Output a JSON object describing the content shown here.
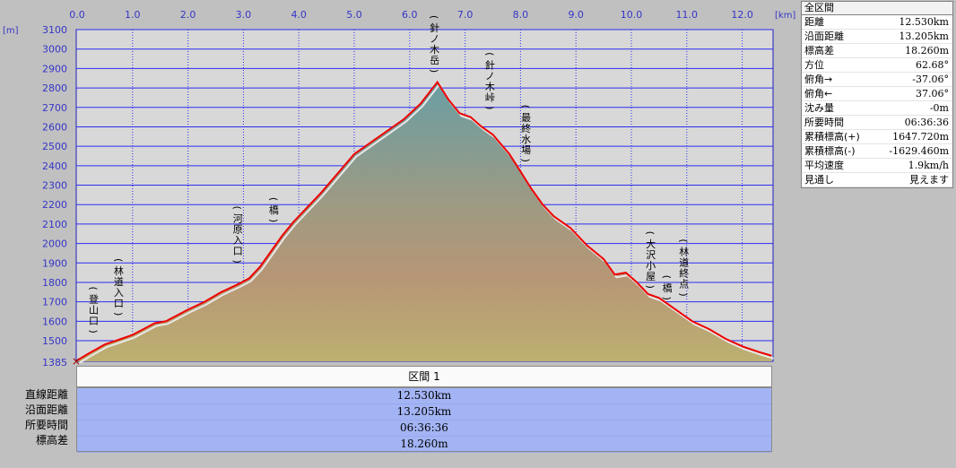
{
  "chart_data": {
    "type": "area",
    "x_unit": "[km]",
    "y_unit": "[m]",
    "xlim": [
      0,
      12.53
    ],
    "ylim": [
      1385,
      3100
    ],
    "x_ticks": [
      "0.0",
      "1.0",
      "2.0",
      "3.0",
      "4.0",
      "5.0",
      "6.0",
      "7.0",
      "8.0",
      "9.0",
      "10.0",
      "11.0",
      "12.0"
    ],
    "y_ticks": [
      "3100",
      "3000",
      "2900",
      "2800",
      "2700",
      "2600",
      "2500",
      "2400",
      "2300",
      "2200",
      "2100",
      "2000",
      "1900",
      "1800",
      "1700",
      "1600",
      "1500",
      "1385"
    ],
    "grid": true,
    "series": [
      {
        "color": "#ee0000",
        "x": [
          0.0,
          0.2,
          0.5,
          0.8,
          1.0,
          1.2,
          1.4,
          1.6,
          1.8,
          2.0,
          2.3,
          2.6,
          2.9,
          3.1,
          3.3,
          3.5,
          3.7,
          3.9,
          4.1,
          4.4,
          4.7,
          5.0,
          5.3,
          5.6,
          5.9,
          6.2,
          6.5,
          6.7,
          6.9,
          7.1,
          7.3,
          7.5,
          7.8,
          8.0,
          8.2,
          8.4,
          8.6,
          8.9,
          9.2,
          9.5,
          9.7,
          9.9,
          10.1,
          10.3,
          10.5,
          10.7,
          10.9,
          11.1,
          11.4,
          11.7,
          12.0,
          12.3,
          12.53
        ],
        "y": [
          1395,
          1430,
          1480,
          1510,
          1530,
          1560,
          1590,
          1600,
          1630,
          1660,
          1700,
          1750,
          1790,
          1820,
          1880,
          1960,
          2040,
          2110,
          2170,
          2260,
          2360,
          2460,
          2520,
          2580,
          2640,
          2720,
          2830,
          2740,
          2670,
          2650,
          2600,
          2560,
          2460,
          2370,
          2280,
          2200,
          2140,
          2080,
          1990,
          1920,
          1840,
          1850,
          1800,
          1740,
          1720,
          1680,
          1640,
          1600,
          1560,
          1510,
          1470,
          1440,
          1420
        ]
      }
    ],
    "annotations": [
      {
        "text": "(登山口)",
        "x": 0.3,
        "y": 1520
      },
      {
        "text": "(林道入口)",
        "x": 0.75,
        "y": 1610
      },
      {
        "text": "(河原入口)",
        "x": 2.9,
        "y": 1880
      },
      {
        "text": "(橋)",
        "x": 3.55,
        "y": 2090
      },
      {
        "text": "(針ノ木岳)",
        "x": 6.45,
        "y": 2860
      },
      {
        "text": "(針ノ木峠)",
        "x": 7.45,
        "y": 2670
      },
      {
        "text": "(最終水場)",
        "x": 8.1,
        "y": 2400
      },
      {
        "text": "(大沢小屋)",
        "x": 10.35,
        "y": 1750
      },
      {
        "text": "(橋)",
        "x": 10.65,
        "y": 1690
      },
      {
        "text": "(林道終点)",
        "x": 10.95,
        "y": 1710
      }
    ]
  },
  "stats": {
    "title": "全区間",
    "rows": [
      {
        "label": "距離",
        "value": "12.530km"
      },
      {
        "label": "沿面距離",
        "value": "13.205km"
      },
      {
        "label": "標高差",
        "value": "18.260m"
      },
      {
        "label": "方位",
        "value": "62.68°"
      },
      {
        "label": "俯角→",
        "value": "-37.06°"
      },
      {
        "label": "俯角←",
        "value": "37.06°"
      },
      {
        "label": "沈み量",
        "value": "-0m"
      },
      {
        "label": "所要時間",
        "value": "06:36:36"
      },
      {
        "label": "累積標高(+)",
        "value": "1647.720m"
      },
      {
        "label": "累積標高(-)",
        "value": "-1629.460m"
      },
      {
        "label": "平均速度",
        "value": "1.9km/h"
      },
      {
        "label": "見通し",
        "value": "見えます"
      }
    ]
  },
  "segment": {
    "header": "区間 1",
    "labels": [
      "直線距離",
      "沿面距離",
      "所要時間",
      "標高差"
    ],
    "values": [
      "12.530km",
      "13.205km",
      "06:36:36",
      "18.260m"
    ]
  },
  "colors": {
    "plot_bg": "#d8d8d8",
    "grid": "#2d2df0",
    "profile": "#ee0000",
    "fill_top": "#6a9ea4",
    "fill_mid": "#b49070",
    "fill_bottom": "#bdb070"
  }
}
